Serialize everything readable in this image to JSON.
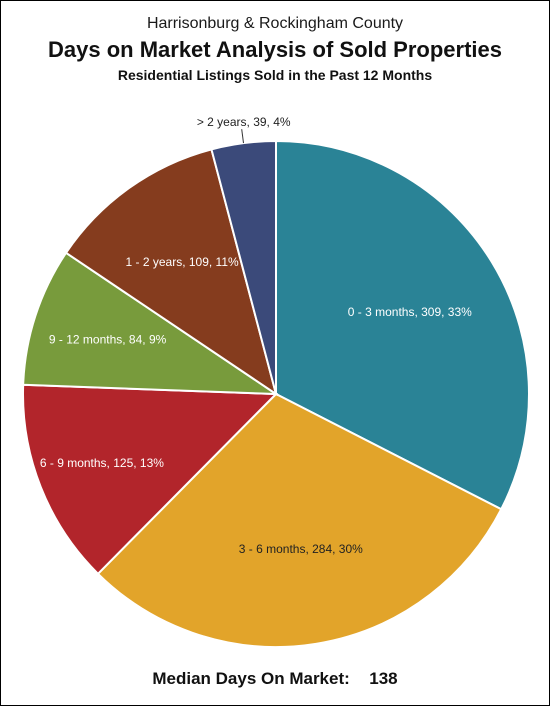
{
  "titles": {
    "top": "Harrisonburg & Rockingham County",
    "main": "Days on Market Analysis of Sold Properties",
    "sub": "Residential Listings Sold in the Past 12 Months"
  },
  "footer": {
    "label": "Median Days On Market:",
    "value": "138"
  },
  "chart_data": {
    "type": "pie",
    "title": "Days on Market Analysis of Sold Properties",
    "categories": [
      "0 - 3 months",
      "3 - 6 months",
      "6 - 9 months",
      "9 - 12 months",
      "1 - 2 years",
      "> 2 years"
    ],
    "values": [
      309,
      284,
      125,
      84,
      109,
      39
    ],
    "percents": [
      33,
      30,
      13,
      9,
      11,
      4
    ],
    "labels": [
      "0 - 3 months, 309, 33%",
      "3 - 6 months, 284, 30%",
      "6 - 9 months, 125, 13%",
      "9 - 12 months, 84, 9%",
      "1 - 2 years, 109, 11%",
      "> 2 years, 39, 4%"
    ],
    "colors": [
      "#2a8396",
      "#e2a42a",
      "#b2252b",
      "#789b3c",
      "#853c1e",
      "#3b4a7a"
    ],
    "label_colors": [
      "#ffffff",
      "#222222",
      "#ffffff",
      "#ffffff",
      "#ffffff",
      "#222222"
    ],
    "start": "12 o'clock",
    "direction": "clockwise",
    "legend": "none (data labels on slices)"
  }
}
